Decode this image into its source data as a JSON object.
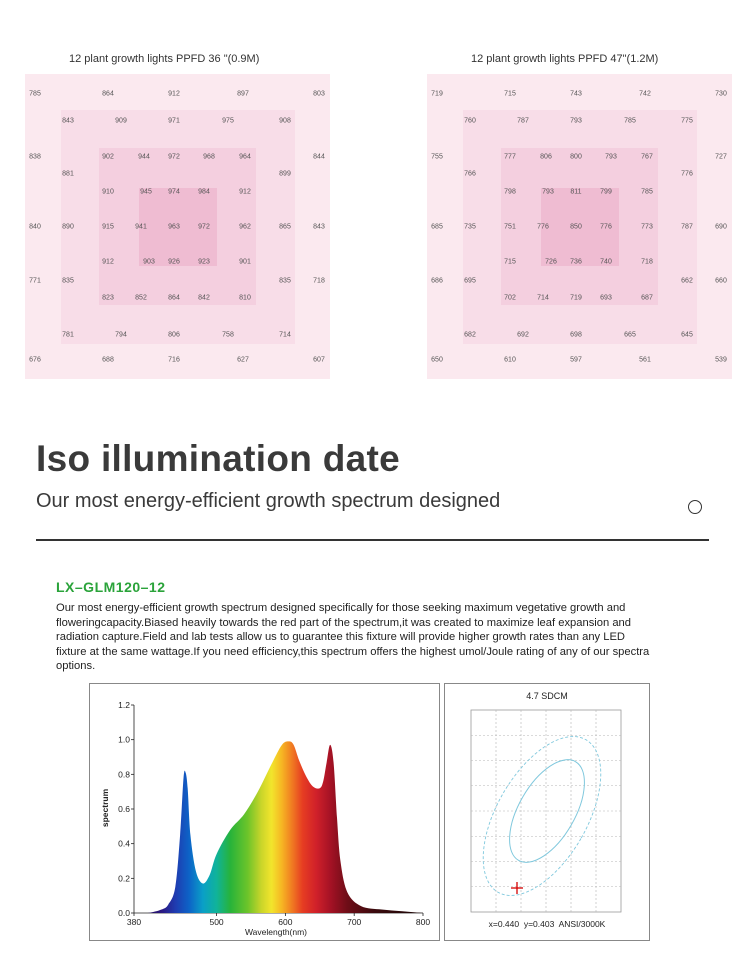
{
  "ppfd_maps": [
    {
      "title": "12 plant growth lights PPFD 36 \"(0.9M)",
      "rows": [
        [
          "785",
          "864",
          "912",
          "897",
          "803"
        ],
        [
          "843",
          "909",
          "971",
          "975",
          "908"
        ],
        [
          "838",
          "902",
          "944",
          "972",
          "968",
          "964",
          "844"
        ],
        [
          "881",
          "899"
        ],
        [
          "910",
          "945",
          "974",
          "984",
          "912"
        ],
        [
          "840",
          "890",
          "915",
          "941",
          "963",
          "972",
          "962",
          "865",
          "843"
        ],
        [
          "912",
          "903",
          "926",
          "923",
          "901"
        ],
        [
          "771",
          "835",
          "835",
          "718"
        ],
        [
          "823",
          "852",
          "864",
          "842",
          "810"
        ],
        [
          "781",
          "794",
          "806",
          "758",
          "714"
        ],
        [
          "676",
          "688",
          "716",
          "627",
          "607"
        ]
      ]
    },
    {
      "title": "12 plant growth lights  PPFD 47\"(1.2M)",
      "rows": [
        [
          "719",
          "715",
          "743",
          "742",
          "730"
        ],
        [
          "760",
          "787",
          "793",
          "785",
          "775"
        ],
        [
          "755",
          "777",
          "806",
          "800",
          "793",
          "767",
          "727"
        ],
        [
          "766",
          "776"
        ],
        [
          "798",
          "793",
          "811",
          "799",
          "785"
        ],
        [
          "685",
          "735",
          "751",
          "776",
          "850",
          "776",
          "773",
          "787",
          "690"
        ],
        [
          "715",
          "726",
          "736",
          "740",
          "718"
        ],
        [
          "686",
          "695",
          "662",
          "660"
        ],
        [
          "702",
          "714",
          "719",
          "693",
          "687"
        ],
        [
          "682",
          "692",
          "698",
          "665",
          "645"
        ],
        [
          "650",
          "610",
          "597",
          "561",
          "539"
        ]
      ]
    }
  ],
  "header": {
    "title": "Iso illumination date",
    "subtitle": "Our most energy-efficient growth spectrum designed"
  },
  "product": {
    "model": "LX–GLM120–12",
    "description": "Our most energy-efficient growth spectrum designed specifically for those seeking maximum vegetative growth and floweringcapacity.Biased heavily towards the red part of the spectrum,it was created to maximize leaf expansion and radiation capture.Field and lab tests allow us to guarantee this fixture will provide higher growth rates than any LED fixture at the same wattage.If you need efficiency,this spectrum offers the highest umol/Joule rating of any of our spectra options."
  },
  "chart_data": [
    {
      "type": "area",
      "xlabel": "Wavelength(nm)",
      "ylabel": "spectrum",
      "xlim": [
        380,
        800
      ],
      "ylim": [
        0,
        1.2
      ],
      "x_ticks": [
        "380",
        "500",
        "600",
        "700",
        "800"
      ],
      "y_ticks": [
        "0.0",
        "0.2",
        "0.4",
        "0.6",
        "0.8",
        "1.0",
        "1.2"
      ],
      "x": [
        380,
        400,
        420,
        430,
        440,
        447,
        452,
        455,
        458,
        462,
        470,
        480,
        490,
        500,
        520,
        540,
        560,
        580,
        595,
        605,
        612,
        620,
        630,
        640,
        650,
        655,
        660,
        665,
        670,
        675,
        680,
        690,
        710,
        740,
        770,
        800
      ],
      "values": [
        0.0,
        0.0,
        0.02,
        0.05,
        0.15,
        0.45,
        0.78,
        0.81,
        0.72,
        0.45,
        0.24,
        0.17,
        0.22,
        0.34,
        0.48,
        0.57,
        0.7,
        0.86,
        0.97,
        0.99,
        0.97,
        0.88,
        0.79,
        0.73,
        0.72,
        0.76,
        0.87,
        0.97,
        0.87,
        0.55,
        0.3,
        0.12,
        0.04,
        0.02,
        0.01,
        0.0
      ]
    },
    {
      "type": "scatter",
      "title": "4.7 SDCM",
      "point": {
        "x": 0.44,
        "y": 0.403
      },
      "annotation": "x=0.440  y=0.403  ANSI/3000K"
    }
  ]
}
